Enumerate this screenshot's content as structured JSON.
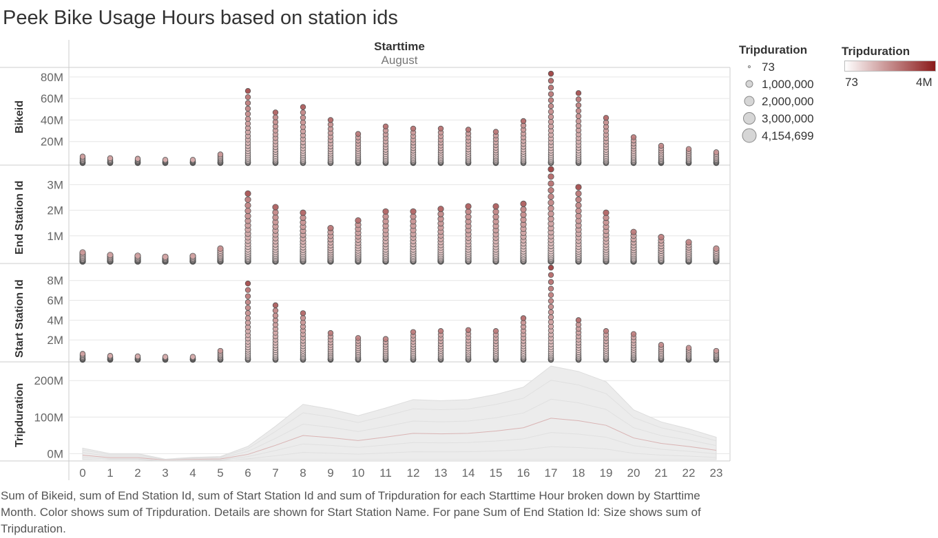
{
  "title": "Peek Bike Usage Hours based on station ids",
  "header": {
    "field": "Starttime",
    "month": "August"
  },
  "caption": "Sum of Bikeid, sum of End Station Id, sum of Start Station Id and sum of Tripduration for each Starttime Hour broken down by Starttime Month.  Color shows sum of Tripduration.  Details are shown for Start Station Name.  For pane Sum of End Station Id:  Size shows sum of Tripduration.",
  "legends": {
    "size": {
      "title": "Tripduration",
      "items": [
        {
          "label": "73",
          "value": 73
        },
        {
          "label": "1,000,000",
          "value": 1000000
        },
        {
          "label": "2,000,000",
          "value": 2000000
        },
        {
          "label": "3,000,000",
          "value": 3000000
        },
        {
          "label": "4,154,699",
          "value": 4154699
        }
      ]
    },
    "color": {
      "title": "Tripduration",
      "min_label": "73",
      "max_label": "4M",
      "low_color": "#ffffff",
      "high_color": "#8b1a1a"
    }
  },
  "colors": {
    "point_stroke": "#555555",
    "area_fill": "#ececec",
    "grid": "#e6e6e6",
    "axis_line": "#cccccc"
  },
  "chart_data": {
    "type": "scatter",
    "x": [
      0,
      1,
      2,
      3,
      4,
      5,
      6,
      7,
      8,
      9,
      10,
      11,
      12,
      13,
      14,
      15,
      16,
      17,
      18,
      19,
      20,
      21,
      22,
      23
    ],
    "xlabel": "",
    "panes": [
      {
        "ylabel": "Bikeid",
        "ylim": [
          0,
          85000000
        ],
        "ticks": [
          {
            "v": 20000000,
            "l": "20M"
          },
          {
            "v": 40000000,
            "l": "40M"
          },
          {
            "v": 60000000,
            "l": "60M"
          },
          {
            "v": 80000000,
            "l": "80M"
          }
        ],
        "max_values": [
          6000000,
          4500000,
          4000000,
          3000000,
          3000000,
          8000000,
          67000000,
          47000000,
          52000000,
          40000000,
          27000000,
          34000000,
          32000000,
          32000000,
          31000000,
          29000000,
          39000000,
          83000000,
          65000000,
          42000000,
          24000000,
          16000000,
          13000000,
          10000000
        ]
      },
      {
        "ylabel": "End Station Id",
        "ylim": [
          0,
          3600000
        ],
        "ticks": [
          {
            "v": 1000000,
            "l": "1M"
          },
          {
            "v": 2000000,
            "l": "2M"
          },
          {
            "v": 3000000,
            "l": "3M"
          }
        ],
        "max_values": [
          350000,
          250000,
          220000,
          180000,
          210000,
          500000,
          2650000,
          2120000,
          1900000,
          1300000,
          1600000,
          1950000,
          1950000,
          2050000,
          2150000,
          2150000,
          2250000,
          3600000,
          2900000,
          1900000,
          1150000,
          950000,
          750000,
          500000
        ]
      },
      {
        "ylabel": "Start Station Id",
        "ylim": [
          0,
          9300000
        ],
        "ticks": [
          {
            "v": 2000000,
            "l": "2M"
          },
          {
            "v": 4000000,
            "l": "4M"
          },
          {
            "v": 6000000,
            "l": "6M"
          },
          {
            "v": 8000000,
            "l": "8M"
          }
        ],
        "max_values": [
          600000,
          400000,
          350000,
          300000,
          300000,
          900000,
          7700000,
          5500000,
          4700000,
          2700000,
          2200000,
          2100000,
          2800000,
          2900000,
          3000000,
          2900000,
          4200000,
          9300000,
          4000000,
          2900000,
          2600000,
          1500000,
          1200000,
          900000
        ]
      },
      {
        "ylabel": "Tripduration",
        "ylim": [
          -20000000,
          240000000
        ],
        "ticks": [
          {
            "v": 0,
            "l": "0M"
          },
          {
            "v": 100000000,
            "l": "100M"
          },
          {
            "v": 200000000,
            "l": "200M"
          }
        ],
        "series": [
          {
            "values": [
              15000000,
              0,
              0,
              -15000000,
              -10000000,
              -8000000,
              20000000,
              75000000,
              135000000,
              122000000,
              104000000,
              125000000,
              148000000,
              145000000,
              148000000,
              162000000,
              182000000,
              240000000,
              225000000,
              197000000,
              120000000,
              87000000,
              68000000,
              45000000
            ]
          }
        ]
      }
    ]
  }
}
